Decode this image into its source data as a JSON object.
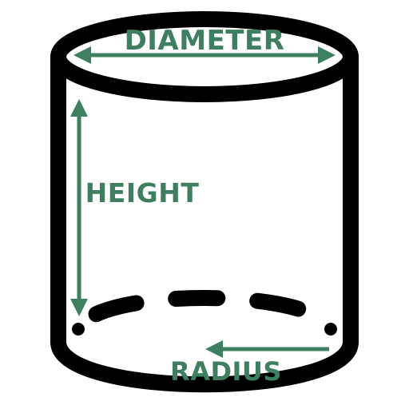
{
  "diagram": {
    "subject": "cylinder",
    "labels": {
      "diameter": "DIAMETER",
      "height": "HEIGHT",
      "radius": "RADIUS"
    },
    "colors": {
      "outline": "#000000",
      "annotation": "#3d7f5f",
      "background": "#ffffff"
    }
  }
}
